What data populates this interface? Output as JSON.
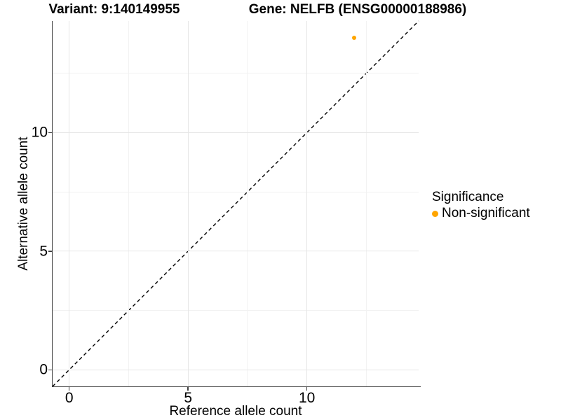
{
  "chart_data": {
    "type": "scatter",
    "titles": {
      "variant": "Variant: 9:140149955",
      "gene": "Gene: NELFB (ENSG00000188986)"
    },
    "xlabel": "Reference allele count",
    "ylabel": "Alternative allele count",
    "xlim": [
      -0.7,
      14.7
    ],
    "ylim": [
      -0.7,
      14.7
    ],
    "x_major_ticks": [
      0,
      5,
      10
    ],
    "y_major_ticks": [
      0,
      5,
      10
    ],
    "x_minor_gridlines": [
      2.5,
      7.5,
      12.5
    ],
    "y_minor_gridlines": [
      2.5,
      7.5,
      12.5
    ],
    "grid": true,
    "legend_position": "right",
    "reference_line": {
      "type": "identity",
      "from": [
        -0.7,
        -0.7
      ],
      "to": [
        14.7,
        14.7
      ],
      "style": "dashed",
      "color": "#000000"
    },
    "series": [
      {
        "name": "Non-significant",
        "color": "#FFA500",
        "points": [
          {
            "x": 12,
            "y": 14
          }
        ]
      }
    ],
    "legend": {
      "title": "Significance",
      "entries": [
        {
          "label": "Non-significant",
          "color": "#FFA500"
        }
      ]
    }
  },
  "colors": {
    "axis_line": "#404040",
    "grid_major": "#e6e6e6",
    "grid_minor": "#f2f2f2",
    "text": "#000000"
  }
}
